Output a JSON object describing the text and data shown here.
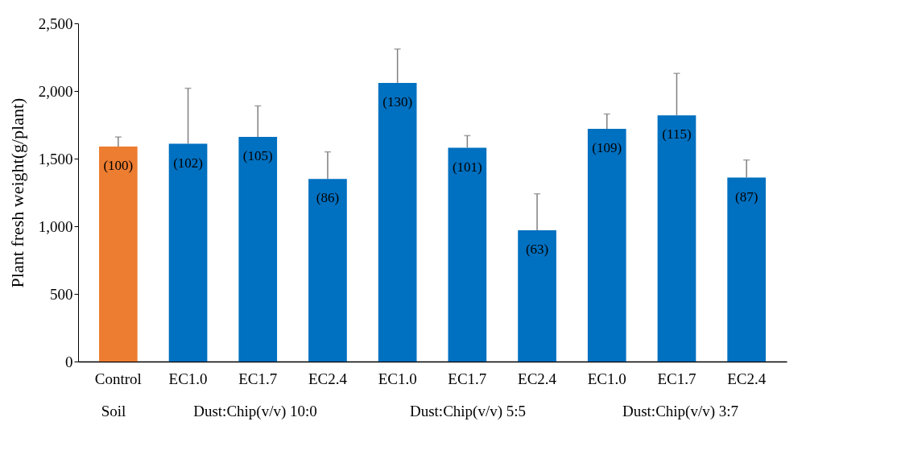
{
  "chart_data": {
    "type": "bar",
    "ylabel": "Plant fresh weight(g/plant)",
    "categories": [
      "Control",
      "EC1.0",
      "EC1.7",
      "EC2.4",
      "EC1.0",
      "EC1.7",
      "EC2.4",
      "EC1.0",
      "EC1.7",
      "EC2.4"
    ],
    "values": [
      1590,
      1610,
      1660,
      1350,
      2060,
      1580,
      970,
      1720,
      1820,
      1360
    ],
    "colors": [
      "#ed7d31",
      "#0070c0",
      "#0070c0",
      "#0070c0",
      "#0070c0",
      "#0070c0",
      "#0070c0",
      "#0070c0",
      "#0070c0",
      "#0070c0"
    ],
    "errors": [
      [
        1590,
        1660
      ],
      [
        1610,
        2020
      ],
      [
        1660,
        1890
      ],
      [
        1350,
        1550
      ],
      [
        2060,
        2310
      ],
      [
        1580,
        1670
      ],
      [
        970,
        1240
      ],
      [
        1720,
        1830
      ],
      [
        1820,
        2130
      ],
      [
        1360,
        1490
      ]
    ],
    "annotations": [
      "(100)",
      "(102)",
      "(105)",
      "(86)",
      "(130)",
      "(101)",
      "(63)",
      "(109)",
      "(115)",
      "(87)",
      "Soil",
      "Dust:Chip(v/v) 10:0",
      "Dust:Chip(v/v) 5:5",
      "Dust:Chip(v/v) 3:7"
    ],
    "ylim": [
      0,
      2500
    ],
    "yticks": [
      0,
      {
        "value": 500,
        "label": "500"
      },
      {
        "value": 1000,
        "label": "1,000"
      },
      {
        "value": 1500,
        "label": "1,500"
      },
      {
        "value": 2000,
        "label": "2,000"
      },
      {
        "value": 2500,
        "label": "2,500"
      }
    ],
    "grid": false
  }
}
